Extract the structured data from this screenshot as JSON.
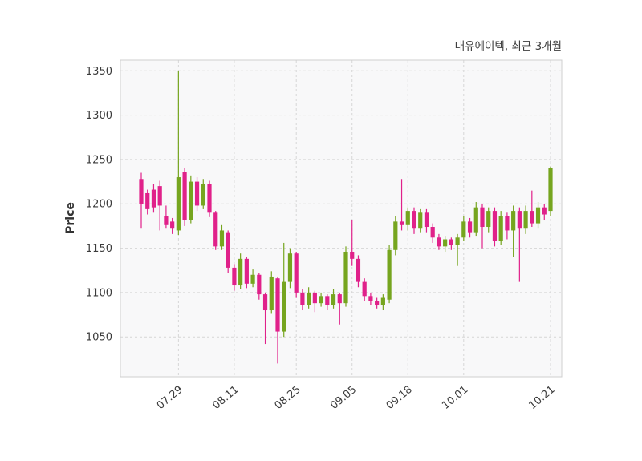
{
  "chart": {
    "title": "대유에이텍, 최근 3개월",
    "ylabel": "Price"
  },
  "chart_data": {
    "type": "candlestick",
    "title": "대유에이텍, 최근 3개월",
    "xlabel": "",
    "ylabel": "Price",
    "ylim": [
      1005,
      1362
    ],
    "y_ticks": [
      1050,
      1100,
      1150,
      1200,
      1250,
      1300,
      1350
    ],
    "x_tick_labels": [
      "07.29",
      "08.11",
      "08.25",
      "09.05",
      "09.18",
      "10.01",
      "10.21"
    ],
    "x_tick_indices": [
      6,
      15,
      25,
      34,
      43,
      52,
      66
    ],
    "grid": true,
    "grid_style": "dashed",
    "legend": "none",
    "up_color": "#76a51f",
    "down_color": "#e0218a",
    "plot_bg": "#f8f8f9",
    "grid_color": "#d6d6d6",
    "frame_color": "#cfcfcf",
    "text_color": "#3c3c3c",
    "candle_format": [
      "date",
      "open",
      "high",
      "low",
      "close"
    ],
    "candles": [
      [
        "07.21",
        1228,
        1235,
        1172,
        1200
      ],
      [
        "07.22",
        1212,
        1216,
        1188,
        1194
      ],
      [
        "07.23",
        1216,
        1222,
        1190,
        1196
      ],
      [
        "07.24",
        1220,
        1226,
        1170,
        1198
      ],
      [
        "07.25",
        1186,
        1198,
        1172,
        1176
      ],
      [
        "07.28",
        1180,
        1184,
        1166,
        1172
      ],
      [
        "07.29",
        1170,
        1350,
        1165,
        1230
      ],
      [
        "07.30",
        1236,
        1240,
        1175,
        1182
      ],
      [
        "07.31",
        1182,
        1232,
        1178,
        1225
      ],
      [
        "08.01",
        1225,
        1230,
        1192,
        1198
      ],
      [
        "08.04",
        1198,
        1228,
        1194,
        1222
      ],
      [
        "08.05",
        1222,
        1226,
        1185,
        1190
      ],
      [
        "08.06",
        1190,
        1192,
        1148,
        1152
      ],
      [
        "08.07",
        1152,
        1176,
        1148,
        1170
      ],
      [
        "08.08",
        1168,
        1170,
        1122,
        1128
      ],
      [
        "08.11",
        1128,
        1132,
        1102,
        1108
      ],
      [
        "08.12",
        1108,
        1144,
        1104,
        1138
      ],
      [
        "08.13",
        1138,
        1140,
        1105,
        1110
      ],
      [
        "08.14",
        1110,
        1126,
        1106,
        1120
      ],
      [
        "08.15",
        1120,
        1122,
        1092,
        1098
      ],
      [
        "08.18",
        1098,
        1100,
        1042,
        1080
      ],
      [
        "08.19",
        1080,
        1124,
        1076,
        1118
      ],
      [
        "08.20",
        1116,
        1118,
        1020,
        1056
      ],
      [
        "08.21",
        1056,
        1156,
        1050,
        1112
      ],
      [
        "08.22",
        1112,
        1150,
        1105,
        1144
      ],
      [
        "08.25",
        1144,
        1146,
        1094,
        1100
      ],
      [
        "08.26",
        1100,
        1104,
        1080,
        1086
      ],
      [
        "08.27",
        1086,
        1106,
        1082,
        1100
      ],
      [
        "08.28",
        1100,
        1102,
        1078,
        1088
      ],
      [
        "08.29",
        1088,
        1100,
        1084,
        1096
      ],
      [
        "09.01",
        1096,
        1098,
        1080,
        1086
      ],
      [
        "09.02",
        1086,
        1104,
        1082,
        1098
      ],
      [
        "09.03",
        1098,
        1100,
        1064,
        1088
      ],
      [
        "09.04",
        1088,
        1152,
        1084,
        1146
      ],
      [
        "09.05",
        1146,
        1182,
        1130,
        1138
      ],
      [
        "09.08",
        1138,
        1142,
        1106,
        1112
      ],
      [
        "09.09",
        1112,
        1116,
        1090,
        1096
      ],
      [
        "09.10",
        1096,
        1100,
        1086,
        1090
      ],
      [
        "09.11",
        1090,
        1094,
        1082,
        1086
      ],
      [
        "09.12",
        1086,
        1098,
        1080,
        1094
      ],
      [
        "09.15",
        1092,
        1154,
        1088,
        1148
      ],
      [
        "09.16",
        1148,
        1186,
        1142,
        1180
      ],
      [
        "09.17",
        1180,
        1228,
        1170,
        1176
      ],
      [
        "09.18",
        1176,
        1196,
        1170,
        1192
      ],
      [
        "09.19",
        1192,
        1196,
        1166,
        1172
      ],
      [
        "09.22",
        1172,
        1194,
        1168,
        1190
      ],
      [
        "09.23",
        1190,
        1194,
        1168,
        1174
      ],
      [
        "09.24",
        1174,
        1178,
        1156,
        1162
      ],
      [
        "09.25",
        1162,
        1166,
        1148,
        1152
      ],
      [
        "09.26",
        1152,
        1164,
        1146,
        1160
      ],
      [
        "09.29",
        1160,
        1162,
        1148,
        1154
      ],
      [
        "09.30",
        1154,
        1166,
        1130,
        1162
      ],
      [
        "10.01",
        1162,
        1186,
        1158,
        1180
      ],
      [
        "10.02",
        1180,
        1184,
        1162,
        1168
      ],
      [
        "10.03",
        1168,
        1202,
        1164,
        1196
      ],
      [
        "10.06",
        1196,
        1200,
        1150,
        1174
      ],
      [
        "10.07",
        1174,
        1196,
        1168,
        1192
      ],
      [
        "10.08",
        1192,
        1196,
        1152,
        1158
      ],
      [
        "10.09",
        1158,
        1192,
        1154,
        1186
      ],
      [
        "10.10",
        1186,
        1190,
        1160,
        1170
      ],
      [
        "10.13",
        1170,
        1198,
        1140,
        1192
      ],
      [
        "10.14",
        1192,
        1196,
        1112,
        1172
      ],
      [
        "10.15",
        1172,
        1198,
        1166,
        1192
      ],
      [
        "10.16",
        1192,
        1215,
        1174,
        1178
      ],
      [
        "10.17",
        1178,
        1202,
        1172,
        1196
      ],
      [
        "10.20",
        1196,
        1200,
        1182,
        1188
      ],
      [
        "10.21",
        1192,
        1242,
        1186,
        1240
      ]
    ]
  }
}
